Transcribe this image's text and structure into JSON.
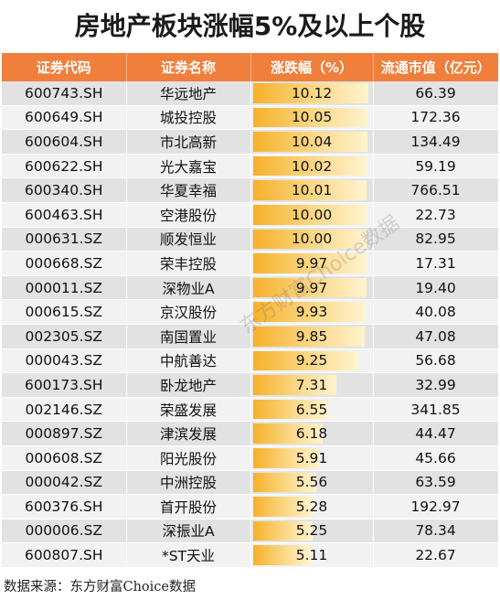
{
  "title": "房地产板块涨幅5%及以上个股",
  "source": "数据来源：东方财富Choice数据",
  "watermark": "东方财富Choice数据",
  "colors": {
    "header_bg": "#f07f3c",
    "bar": "#f6b12a",
    "row_odd": "#e2e2e2",
    "row_even": "#f2f2f2"
  },
  "chart_data": {
    "type": "table",
    "columns": [
      "证券代码",
      "证券名称",
      "涨跌幅（%）",
      "流通市值（亿元）"
    ],
    "rows": [
      {
        "code": "600743.SH",
        "name": "华远地产",
        "change": "10.12",
        "cap": "66.39"
      },
      {
        "code": "600649.SH",
        "name": "城投控股",
        "change": "10.05",
        "cap": "172.36"
      },
      {
        "code": "600604.SH",
        "name": "市北高新",
        "change": "10.04",
        "cap": "134.49"
      },
      {
        "code": "600622.SH",
        "name": "光大嘉宝",
        "change": "10.02",
        "cap": "59.19"
      },
      {
        "code": "600340.SH",
        "name": "华夏幸福",
        "change": "10.01",
        "cap": "766.51"
      },
      {
        "code": "600463.SH",
        "name": "空港股份",
        "change": "10.00",
        "cap": "22.73"
      },
      {
        "code": "000631.SZ",
        "name": "顺发恒业",
        "change": "10.00",
        "cap": "82.95"
      },
      {
        "code": "000668.SZ",
        "name": "荣丰控股",
        "change": "9.97",
        "cap": "17.31"
      },
      {
        "code": "000011.SZ",
        "name": "深物业A",
        "change": "9.97",
        "cap": "19.40"
      },
      {
        "code": "000615.SZ",
        "name": "京汉股份",
        "change": "9.93",
        "cap": "40.08"
      },
      {
        "code": "002305.SZ",
        "name": "南国置业",
        "change": "9.85",
        "cap": "47.08"
      },
      {
        "code": "000043.SZ",
        "name": "中航善达",
        "change": "9.25",
        "cap": "56.68"
      },
      {
        "code": "600173.SH",
        "name": "卧龙地产",
        "change": "7.31",
        "cap": "32.99"
      },
      {
        "code": "002146.SZ",
        "name": "荣盛发展",
        "change": "6.55",
        "cap": "341.85"
      },
      {
        "code": "000897.SZ",
        "name": "津滨发展",
        "change": "6.18",
        "cap": "44.47"
      },
      {
        "code": "000608.SZ",
        "name": "阳光股份",
        "change": "5.91",
        "cap": "45.66"
      },
      {
        "code": "000042.SZ",
        "name": "中洲控股",
        "change": "5.56",
        "cap": "63.59"
      },
      {
        "code": "600376.SH",
        "name": "首开股份",
        "change": "5.28",
        "cap": "192.97"
      },
      {
        "code": "000006.SZ",
        "name": "深振业A",
        "change": "5.25",
        "cap": "78.34"
      },
      {
        "code": "600807.SH",
        "name": "*ST天业",
        "change": "5.11",
        "cap": "22.67"
      }
    ],
    "bar_column": "change",
    "bar_max": 10.12
  }
}
